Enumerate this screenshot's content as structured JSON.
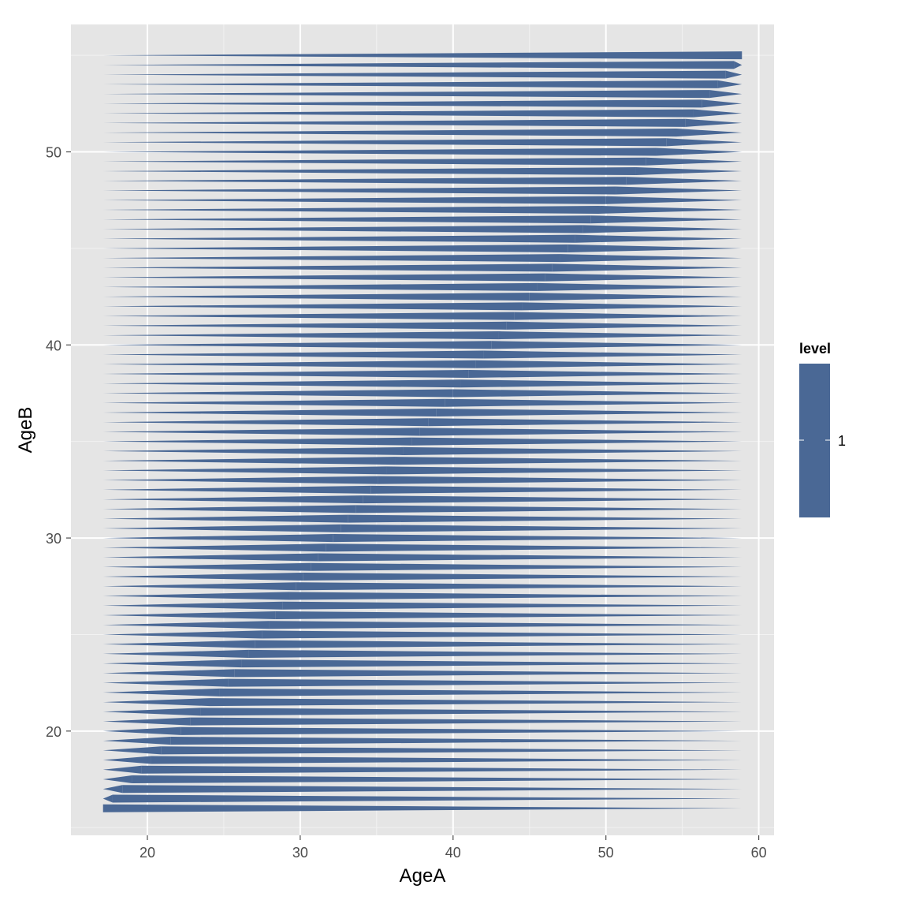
{
  "colors": {
    "panel_bg": "#e5e5e5",
    "grid_major": "#ffffff",
    "grid_minor": "#f2f2f2",
    "fill": "#4a6895",
    "tick": "#4d4d4d"
  },
  "chart_data": {
    "type": "area",
    "xlabel": "AgeA",
    "ylabel": "AgeB",
    "xlim": [
      15,
      61
    ],
    "ylim": [
      14.6,
      56.6
    ],
    "x_ticks": [
      20,
      30,
      40,
      50,
      60
    ],
    "y_ticks": [
      20,
      30,
      40,
      50
    ],
    "grid": true,
    "legend": {
      "title": "level",
      "position": "right",
      "labels": [
        "1"
      ]
    },
    "series": [
      {
        "description_free": true,
        "boundary": {
          "x_start": 17.1,
          "x_end": 58.9,
          "y_min": 16.0,
          "y_max": 55.0,
          "row_step": 0.5,
          "diagonal_points": [
            [
              17.1,
              16.0
            ],
            [
              20.0,
              18.3
            ],
            [
              25.0,
              22.2
            ],
            [
              30.0,
              27.8
            ],
            [
              35.0,
              32.9
            ],
            [
              40.0,
              37.5
            ],
            [
              45.0,
              42.5
            ],
            [
              50.0,
              47.5
            ],
            [
              55.0,
              51.3
            ],
            [
              58.9,
              55.0
            ]
          ]
        }
      }
    ]
  }
}
